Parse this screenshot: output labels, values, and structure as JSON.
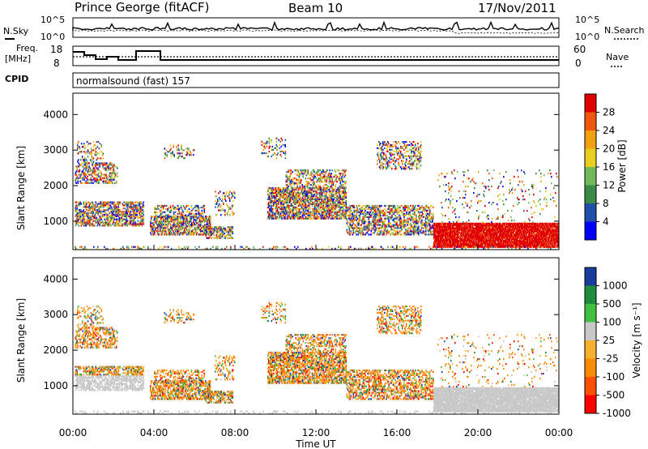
{
  "header": {
    "station": "Prince George (fitACF)",
    "beam": "Beam 10",
    "date": "17/Nov/2011"
  },
  "side_labels": {
    "nsky": "N.Sky",
    "nsearch": "N.Search",
    "freq": "Freq.",
    "freq_unit": "[MHz]",
    "nave": "Nave",
    "cpid": "CPID"
  },
  "noise_panel": {
    "ticks_left": [
      "10^5",
      "10^0"
    ],
    "ticks_right": [
      "10^5",
      "10^0"
    ]
  },
  "freq_panel": {
    "ticks_left": [
      "18",
      "8"
    ],
    "ticks_right": [
      "60",
      "0"
    ]
  },
  "cpid_panel": {
    "label": "normalsound (fast) 157"
  },
  "colors": {
    "power": [
      "#0000ff",
      "#1f4fa8",
      "#3c8a4a",
      "#74b85c",
      "#e8d020",
      "#f0a010",
      "#f05810",
      "#e00000"
    ],
    "velocity": [
      "#ff0000",
      "#ff5000",
      "#ff8c00",
      "#f5b030",
      "#c8c8c8",
      "#40c040",
      "#1e8c3c",
      "#1a3c9c"
    ],
    "power_dominant": "#f08a20",
    "velocity_gs": "#c8c8c8"
  },
  "chart_data": [
    {
      "type": "heatmap",
      "name": "power",
      "ylabel": "Slant Range [km]",
      "yticks": [
        "1000",
        "2000",
        "3000",
        "4000"
      ],
      "ylim": [
        200,
        4600
      ],
      "xlim": [
        0,
        24
      ],
      "colorbar": {
        "label": "Power [dB]",
        "ticks": [
          "4",
          "8",
          "12",
          "16",
          "20",
          "24",
          "28"
        ],
        "range": [
          0,
          32
        ]
      }
    },
    {
      "type": "heatmap",
      "name": "velocity",
      "ylabel": "Slant Range [km]",
      "yticks": [
        "1000",
        "2000",
        "3000",
        "4000"
      ],
      "ylim": [
        200,
        4600
      ],
      "xlim": [
        0,
        24
      ],
      "colorbar": {
        "label": "Velocity [m s⁻¹]",
        "ticks": [
          "1000",
          "500",
          "100",
          "25",
          "-25",
          "-100",
          "-500",
          "-1000"
        ]
      }
    }
  ],
  "xaxis": {
    "ticks": [
      "00:00",
      "04:00",
      "08:00",
      "12:00",
      "16:00",
      "20:00",
      "00:00"
    ],
    "label": "Time UT"
  }
}
